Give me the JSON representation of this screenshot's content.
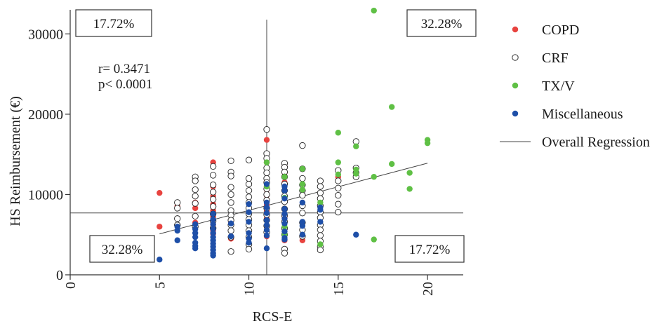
{
  "chart_data": {
    "type": "scatter",
    "xlabel": "RCS-E",
    "ylabel": "HS Reimbursement (€)",
    "xlim": [
      0,
      22
    ],
    "ylim": [
      0,
      33000
    ],
    "xticks": [
      0,
      5,
      10,
      15,
      20
    ],
    "yticks": [
      0,
      10000,
      20000,
      30000
    ],
    "x_cut": 11,
    "y_cut": 7700,
    "quadrant_labels": {
      "top_left": "17.72%",
      "top_right": "32.28%",
      "bottom_left": "32.28%",
      "bottom_right": "17.72%"
    },
    "stats": {
      "r_text": "r= 0.3471",
      "p_text": "p< 0.0001"
    },
    "regression": {
      "name": "Overall Regression",
      "x": [
        5,
        20
      ],
      "y": [
        5100,
        13900
      ],
      "color": "#444444"
    },
    "series": [
      {
        "name": "COPD",
        "color": "#e8433f",
        "style": "filled",
        "points": [
          [
            5,
            10200
          ],
          [
            5,
            6000
          ],
          [
            6,
            8500
          ],
          [
            6,
            6200
          ],
          [
            7,
            8300
          ],
          [
            7,
            9000
          ],
          [
            7,
            6500
          ],
          [
            8,
            14000
          ],
          [
            8,
            11000
          ],
          [
            8,
            9800
          ],
          [
            8,
            8800
          ],
          [
            8,
            8000
          ],
          [
            8,
            7200
          ],
          [
            8,
            6800
          ],
          [
            8,
            6300
          ],
          [
            8,
            5900
          ],
          [
            8,
            5500
          ],
          [
            8,
            5100
          ],
          [
            9,
            6600
          ],
          [
            9,
            4500
          ],
          [
            11,
            16800
          ],
          [
            11,
            14000
          ],
          [
            11,
            12700
          ],
          [
            11,
            11600
          ],
          [
            11,
            11000
          ],
          [
            11,
            10600
          ],
          [
            11,
            9900
          ],
          [
            11,
            9300
          ],
          [
            11,
            8700
          ],
          [
            11,
            7900
          ],
          [
            11,
            7000
          ],
          [
            11,
            6000
          ],
          [
            11,
            5300
          ],
          [
            11,
            4800
          ],
          [
            12,
            13800
          ],
          [
            12,
            12700
          ],
          [
            12,
            11500
          ],
          [
            12,
            10500
          ],
          [
            12,
            7200
          ],
          [
            12,
            4300
          ],
          [
            13,
            8700
          ],
          [
            13,
            4300
          ],
          [
            14,
            11000
          ],
          [
            15,
            12200
          ]
        ]
      },
      {
        "name": "CRF",
        "color": "#222222",
        "style": "open",
        "points": [
          [
            6,
            9000
          ],
          [
            6,
            8300
          ],
          [
            6,
            7000
          ],
          [
            6,
            6200
          ],
          [
            7,
            12200
          ],
          [
            7,
            11700
          ],
          [
            7,
            10600
          ],
          [
            7,
            9800
          ],
          [
            7,
            8900
          ],
          [
            7,
            7300
          ],
          [
            7,
            6000
          ],
          [
            8,
            13500
          ],
          [
            8,
            12400
          ],
          [
            8,
            11200
          ],
          [
            8,
            10300
          ],
          [
            8,
            9400
          ],
          [
            8,
            8500
          ],
          [
            8,
            7600
          ],
          [
            8,
            6700
          ],
          [
            8,
            5800
          ],
          [
            9,
            14200
          ],
          [
            9,
            12800
          ],
          [
            9,
            12300
          ],
          [
            9,
            10900
          ],
          [
            9,
            10000
          ],
          [
            9,
            9000
          ],
          [
            9,
            8000
          ],
          [
            9,
            7400
          ],
          [
            9,
            6800
          ],
          [
            9,
            6200
          ],
          [
            9,
            5500
          ],
          [
            9,
            4700
          ],
          [
            9,
            2900
          ],
          [
            10,
            14300
          ],
          [
            10,
            12000
          ],
          [
            10,
            11300
          ],
          [
            10,
            10500
          ],
          [
            10,
            9700
          ],
          [
            10,
            9000
          ],
          [
            10,
            8300
          ],
          [
            10,
            7600
          ],
          [
            10,
            6900
          ],
          [
            10,
            6200
          ],
          [
            10,
            5500
          ],
          [
            10,
            4700
          ],
          [
            10,
            3800
          ],
          [
            10,
            3200
          ],
          [
            11,
            18100
          ],
          [
            11,
            15100
          ],
          [
            11,
            14500
          ],
          [
            11,
            13300
          ],
          [
            11,
            12700
          ],
          [
            11,
            12000
          ],
          [
            11,
            11500
          ],
          [
            11,
            10700
          ],
          [
            11,
            10000
          ],
          [
            11,
            9300
          ],
          [
            11,
            8300
          ],
          [
            11,
            7500
          ],
          [
            11,
            6800
          ],
          [
            11,
            6100
          ],
          [
            11,
            5300
          ],
          [
            12,
            13900
          ],
          [
            12,
            13400
          ],
          [
            12,
            12800
          ],
          [
            12,
            12200
          ],
          [
            12,
            11300
          ],
          [
            12,
            10500
          ],
          [
            12,
            9800
          ],
          [
            12,
            9100
          ],
          [
            12,
            8200
          ],
          [
            12,
            7400
          ],
          [
            12,
            6600
          ],
          [
            12,
            5800
          ],
          [
            12,
            5000
          ],
          [
            12,
            3200
          ],
          [
            12,
            2700
          ],
          [
            13,
            16100
          ],
          [
            13,
            13200
          ],
          [
            13,
            12000
          ],
          [
            13,
            11200
          ],
          [
            13,
            10500
          ],
          [
            13,
            9900
          ],
          [
            13,
            8600
          ],
          [
            13,
            7700
          ],
          [
            13,
            6500
          ],
          [
            13,
            5600
          ],
          [
            13,
            4800
          ],
          [
            14,
            11700
          ],
          [
            14,
            11000
          ],
          [
            14,
            10200
          ],
          [
            14,
            9500
          ],
          [
            14,
            8600
          ],
          [
            14,
            7800
          ],
          [
            14,
            7100
          ],
          [
            14,
            6200
          ],
          [
            14,
            5600
          ],
          [
            14,
            4900
          ],
          [
            14,
            4200
          ],
          [
            14,
            3500
          ],
          [
            14,
            3100
          ],
          [
            15,
            13000
          ],
          [
            15,
            11700
          ],
          [
            15,
            10800
          ],
          [
            15,
            9900
          ],
          [
            15,
            8800
          ],
          [
            15,
            7800
          ],
          [
            16,
            16600
          ],
          [
            16,
            13300
          ],
          [
            16,
            12700
          ],
          [
            16,
            12200
          ]
        ]
      },
      {
        "name": "TX/V",
        "color": "#5fc045",
        "style": "filled",
        "points": [
          [
            11,
            14000
          ],
          [
            11,
            11000
          ],
          [
            12,
            12200
          ],
          [
            12,
            9600
          ],
          [
            12,
            6000
          ],
          [
            12,
            5000
          ],
          [
            13,
            13200
          ],
          [
            13,
            11300
          ],
          [
            13,
            10600
          ],
          [
            14,
            9000
          ],
          [
            14,
            3800
          ],
          [
            15,
            17700
          ],
          [
            15,
            14000
          ],
          [
            15,
            12500
          ],
          [
            16,
            16000
          ],
          [
            16,
            13100
          ],
          [
            16,
            12600
          ],
          [
            17,
            32900
          ],
          [
            17,
            12200
          ],
          [
            17,
            4400
          ],
          [
            18,
            20900
          ],
          [
            18,
            13800
          ],
          [
            19,
            12700
          ],
          [
            19,
            10700
          ],
          [
            20,
            16800
          ],
          [
            20,
            16400
          ]
        ]
      },
      {
        "name": "Miscellaneous",
        "color": "#1e4fa8",
        "style": "filled",
        "points": [
          [
            5,
            1900
          ],
          [
            6,
            6000
          ],
          [
            6,
            5500
          ],
          [
            6,
            4300
          ],
          [
            7,
            6300
          ],
          [
            7,
            5700
          ],
          [
            7,
            5200
          ],
          [
            7,
            4700
          ],
          [
            7,
            4000
          ],
          [
            7,
            3600
          ],
          [
            7,
            3300
          ],
          [
            8,
            7600
          ],
          [
            8,
            6900
          ],
          [
            8,
            6300
          ],
          [
            8,
            5700
          ],
          [
            8,
            5200
          ],
          [
            8,
            4700
          ],
          [
            8,
            4300
          ],
          [
            8,
            3900
          ],
          [
            8,
            3500
          ],
          [
            8,
            3100
          ],
          [
            8,
            2700
          ],
          [
            8,
            2400
          ],
          [
            9,
            6400
          ],
          [
            9,
            4800
          ],
          [
            10,
            8800
          ],
          [
            10,
            7800
          ],
          [
            10,
            6600
          ],
          [
            10,
            5200
          ],
          [
            10,
            4500
          ],
          [
            10,
            4000
          ],
          [
            11,
            11300
          ],
          [
            11,
            9000
          ],
          [
            11,
            8400
          ],
          [
            11,
            7700
          ],
          [
            11,
            6800
          ],
          [
            11,
            6200
          ],
          [
            11,
            5600
          ],
          [
            11,
            4900
          ],
          [
            11,
            3300
          ],
          [
            12,
            11000
          ],
          [
            12,
            10500
          ],
          [
            12,
            9500
          ],
          [
            12,
            8200
          ],
          [
            12,
            7600
          ],
          [
            12,
            7000
          ],
          [
            12,
            6400
          ],
          [
            12,
            5400
          ],
          [
            12,
            4600
          ],
          [
            12,
            4400
          ],
          [
            13,
            9000
          ],
          [
            13,
            6600
          ],
          [
            13,
            6100
          ],
          [
            13,
            5000
          ],
          [
            14,
            8400
          ],
          [
            14,
            8100
          ],
          [
            14,
            6600
          ],
          [
            16,
            5000
          ]
        ]
      }
    ],
    "legend": {
      "position": "right"
    }
  }
}
